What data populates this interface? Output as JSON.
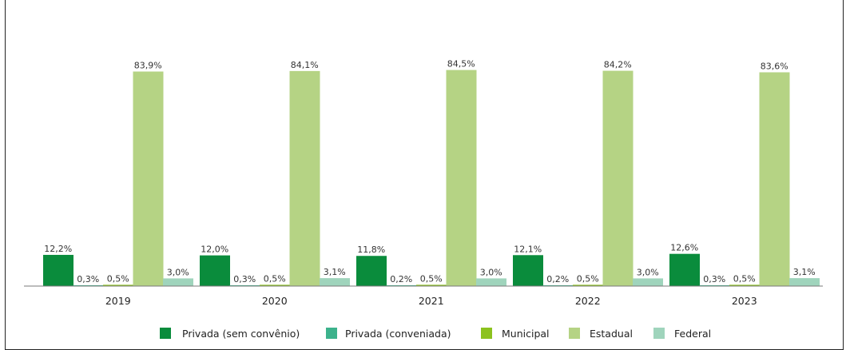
{
  "chart_data": {
    "type": "bar",
    "title": "",
    "xlabel": "",
    "ylabel": "",
    "ylim": [
      0,
      100
    ],
    "grid": false,
    "legend_position": "bottom",
    "categories": [
      "2019",
      "2020",
      "2021",
      "2022",
      "2023"
    ],
    "series": [
      {
        "name": "Privada (sem convênio)",
        "color": "#0a8c3c",
        "values": [
          12.2,
          12.0,
          11.8,
          12.1,
          12.6
        ],
        "labels": [
          "12,2%",
          "12,0%",
          "11,8%",
          "12,1%",
          "12,6%"
        ]
      },
      {
        "name": "Privada (conveniada)",
        "color": "#3cb28c",
        "values": [
          0.3,
          0.3,
          0.2,
          0.2,
          0.3
        ],
        "labels": [
          "0,3%",
          "0,3%",
          "0,2%",
          "0,2%",
          "0,3%"
        ]
      },
      {
        "name": "Municipal",
        "color": "#8cc21e",
        "values": [
          0.5,
          0.5,
          0.5,
          0.5,
          0.5
        ],
        "labels": [
          "0,5%",
          "0,5%",
          "0,5%",
          "0,5%",
          "0,5%"
        ]
      },
      {
        "name": "Estadual",
        "color": "#b5d384",
        "values": [
          83.9,
          84.1,
          84.5,
          84.2,
          83.6
        ],
        "labels": [
          "83,9%",
          "84,1%",
          "84,5%",
          "84,2%",
          "83,6%"
        ]
      },
      {
        "name": "Federal",
        "color": "#9fd4bc",
        "values": [
          3.0,
          3.1,
          3.0,
          3.0,
          3.1
        ],
        "labels": [
          "3,0%",
          "3,1%",
          "3,0%",
          "3,0%",
          "3,1%"
        ]
      }
    ]
  }
}
